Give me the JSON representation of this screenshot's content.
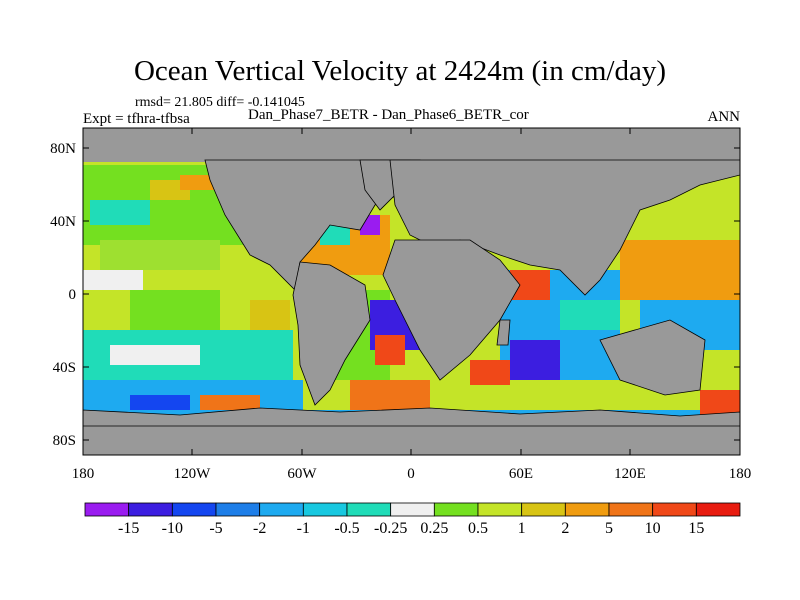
{
  "title": "Ocean Vertical Velocity at 2424m (in cm/day)",
  "stats": "rmsd= 21.805 diff= -0.141045",
  "expt": "Expt = tfhra-tfbsa",
  "cases": "Dan_Phase7_BETR - Dan_Phase6_BETR_cor",
  "season": "ANN",
  "lat_labels": [
    "80N",
    "40N",
    "0",
    "40S",
    "80S"
  ],
  "lon_labels": [
    "180",
    "120W",
    "60W",
    "0",
    "60E",
    "120E",
    "180"
  ],
  "colorbar": {
    "labels": [
      "-15",
      "-10",
      "-5",
      "-2",
      "-1",
      "-0.5",
      "-0.25",
      "0.25",
      "0.5",
      "1",
      "2",
      "5",
      "10",
      "15"
    ],
    "colors": [
      "#9a1cf0",
      "#3c1ee0",
      "#1446f0",
      "#1e7ee8",
      "#1eaaf0",
      "#18c8e0",
      "#20dcb8",
      "#f0f0f0",
      "#74e020",
      "#c4e428",
      "#d8c414",
      "#f09c10",
      "#f07418",
      "#f04818",
      "#e81c10"
    ]
  },
  "colors": {
    "land": "#999999",
    "coast": "#000000"
  }
}
